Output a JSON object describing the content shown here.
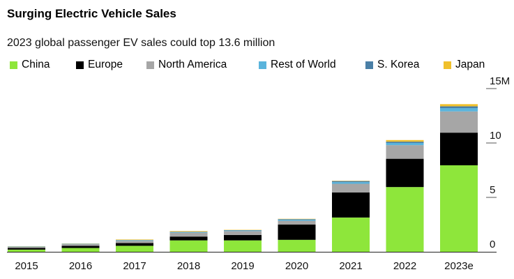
{
  "chart_data": {
    "type": "bar",
    "stacked": true,
    "title": "Surging Electric Vehicle Sales",
    "subtitle": "2023 global passenger EV sales could top 13.6 million",
    "xlabel": "",
    "ylabel": "",
    "ylim": [
      0,
      15
    ],
    "y_ticks": [
      {
        "value": 0,
        "label": "0"
      },
      {
        "value": 5,
        "label": "5"
      },
      {
        "value": 10,
        "label": "10"
      },
      {
        "value": 15,
        "label": "15M"
      }
    ],
    "categories": [
      "2015",
      "2016",
      "2017",
      "2018",
      "2019",
      "2020",
      "2021",
      "2022",
      "2023e"
    ],
    "series": [
      {
        "name": "China",
        "color": "#8ee63b",
        "values": [
          0.2,
          0.35,
          0.55,
          1.05,
          1.05,
          1.1,
          3.15,
          5.95,
          7.95
        ]
      },
      {
        "name": "Europe",
        "color": "#000000",
        "values": [
          0.15,
          0.2,
          0.25,
          0.35,
          0.5,
          1.4,
          2.3,
          2.6,
          3.0
        ]
      },
      {
        "name": "North America",
        "color": "#a6a6a6",
        "values": [
          0.1,
          0.15,
          0.2,
          0.35,
          0.35,
          0.35,
          0.8,
          1.25,
          1.95
        ]
      },
      {
        "name": "Rest of World",
        "color": "#5ab4dc",
        "values": [
          0.03,
          0.03,
          0.05,
          0.05,
          0.05,
          0.1,
          0.15,
          0.2,
          0.3
        ]
      },
      {
        "name": "S. Korea",
        "color": "#4a7fa6",
        "values": [
          0.01,
          0.02,
          0.03,
          0.04,
          0.04,
          0.05,
          0.1,
          0.12,
          0.17
        ]
      },
      {
        "name": "Japan",
        "color": "#f0c02c",
        "values": [
          0.02,
          0.02,
          0.05,
          0.06,
          0.03,
          0.03,
          0.03,
          0.15,
          0.2
        ]
      }
    ],
    "legend_position": "top"
  }
}
